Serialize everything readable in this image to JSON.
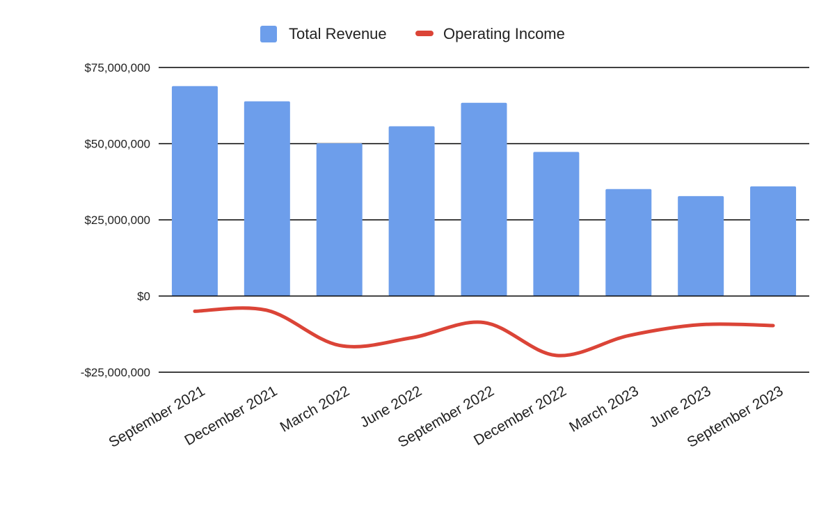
{
  "chart_data": {
    "type": "bar",
    "title": "",
    "xlabel": "",
    "ylabel": "",
    "categories": [
      "September 2021",
      "December 2021",
      "March 2022",
      "June 2022",
      "September 2022",
      "December 2022",
      "March 2023",
      "June 2023",
      "September 2023"
    ],
    "series": [
      {
        "name": "Total Revenue",
        "type": "bar",
        "color": "#6d9eeb",
        "values": [
          68900000,
          63900000,
          50100000,
          55700000,
          63400000,
          47300000,
          35100000,
          32800000,
          36000000
        ]
      },
      {
        "name": "Operating Income",
        "type": "line",
        "smooth": true,
        "color": "#db4437",
        "values": [
          -5000000,
          -4700000,
          -16200000,
          -13700000,
          -8700000,
          -19500000,
          -13000000,
          -9400000,
          -9700000
        ]
      }
    ],
    "ylim": [
      -25000000,
      75000000
    ],
    "yticks": [
      75000000,
      50000000,
      25000000,
      0,
      -25000000
    ],
    "ytick_labels": [
      "$75,000,000",
      "$50,000,000",
      "$25,000,000",
      "$0",
      "-$25,000,000"
    ],
    "grid": true,
    "legend_position": "top"
  }
}
